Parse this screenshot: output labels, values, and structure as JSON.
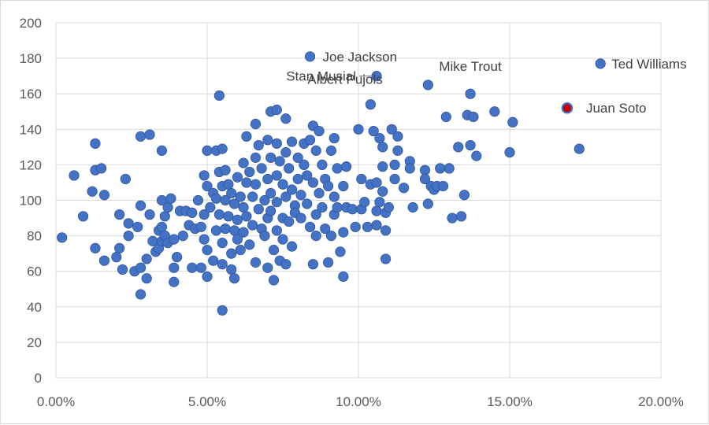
{
  "colors": {
    "point": "#4472c4",
    "point_stroke": "#2f5597",
    "highlight": "#c00000",
    "grid": "#d9d9d9",
    "text": "#595959"
  },
  "chart_data": {
    "type": "scatter",
    "title": "",
    "xlabel": "",
    "ylabel": "",
    "xlim": [
      0,
      0.2
    ],
    "ylim": [
      0,
      200
    ],
    "grid": true,
    "x_ticks": [
      0,
      0.05,
      0.1,
      0.15,
      0.2
    ],
    "x_tick_labels": [
      "0.00%",
      "5.00%",
      "10.00%",
      "15.00%",
      "20.00%"
    ],
    "y_ticks": [
      0,
      20,
      40,
      60,
      80,
      100,
      120,
      140,
      160,
      180,
      200
    ],
    "y_tick_labels": [
      "0",
      "20",
      "40",
      "60",
      "80",
      "100",
      "120",
      "140",
      "160",
      "180",
      "200"
    ],
    "labeled_points": [
      {
        "name": "Joe Jackson",
        "x": 0.084,
        "y": 181
      },
      {
        "name": "Stan Musial",
        "x": 0.106,
        "y": 170
      },
      {
        "name": "Mike Trout",
        "x": 0.123,
        "y": 165
      },
      {
        "name": "Albert Pujols",
        "x": 0.104,
        "y": 154
      },
      {
        "name": "Ted Williams",
        "x": 0.18,
        "y": 177
      },
      {
        "name": "Juan Soto",
        "x": 0.169,
        "y": 152,
        "highlight": true
      }
    ],
    "points": [
      [
        0.002,
        79
      ],
      [
        0.006,
        114
      ],
      [
        0.009,
        91
      ],
      [
        0.012,
        105
      ],
      [
        0.013,
        132
      ],
      [
        0.013,
        117
      ],
      [
        0.013,
        73
      ],
      [
        0.015,
        118
      ],
      [
        0.016,
        103
      ],
      [
        0.016,
        66
      ],
      [
        0.02,
        68
      ],
      [
        0.021,
        92
      ],
      [
        0.021,
        73
      ],
      [
        0.022,
        61
      ],
      [
        0.023,
        112
      ],
      [
        0.024,
        87
      ],
      [
        0.024,
        80
      ],
      [
        0.026,
        60
      ],
      [
        0.027,
        85
      ],
      [
        0.028,
        62
      ],
      [
        0.028,
        47
      ],
      [
        0.028,
        136
      ],
      [
        0.028,
        97
      ],
      [
        0.03,
        67
      ],
      [
        0.03,
        56
      ],
      [
        0.031,
        137
      ],
      [
        0.031,
        92
      ],
      [
        0.032,
        77
      ],
      [
        0.033,
        71
      ],
      [
        0.034,
        73
      ],
      [
        0.034,
        83
      ],
      [
        0.035,
        128
      ],
      [
        0.035,
        100
      ],
      [
        0.035,
        85
      ],
      [
        0.035,
        77
      ],
      [
        0.036,
        91
      ],
      [
        0.036,
        80
      ],
      [
        0.037,
        96
      ],
      [
        0.037,
        76
      ],
      [
        0.038,
        101
      ],
      [
        0.039,
        62
      ],
      [
        0.039,
        54
      ],
      [
        0.039,
        78
      ],
      [
        0.04,
        68
      ],
      [
        0.041,
        94
      ],
      [
        0.042,
        80
      ],
      [
        0.043,
        94
      ],
      [
        0.044,
        86
      ],
      [
        0.045,
        62
      ],
      [
        0.045,
        93
      ],
      [
        0.046,
        84
      ],
      [
        0.047,
        100
      ],
      [
        0.048,
        85
      ],
      [
        0.048,
        62
      ],
      [
        0.049,
        114
      ],
      [
        0.049,
        92
      ],
      [
        0.049,
        78
      ],
      [
        0.05,
        72
      ],
      [
        0.05,
        57
      ],
      [
        0.05,
        108
      ],
      [
        0.05,
        128
      ],
      [
        0.051,
        96
      ],
      [
        0.052,
        104
      ],
      [
        0.052,
        66
      ],
      [
        0.053,
        128
      ],
      [
        0.053,
        101
      ],
      [
        0.053,
        83
      ],
      [
        0.054,
        159
      ],
      [
        0.054,
        116
      ],
      [
        0.054,
        92
      ],
      [
        0.055,
        129
      ],
      [
        0.055,
        108
      ],
      [
        0.055,
        76
      ],
      [
        0.055,
        64
      ],
      [
        0.055,
        38
      ],
      [
        0.056,
        117
      ],
      [
        0.056,
        100
      ],
      [
        0.056,
        84
      ],
      [
        0.057,
        109
      ],
      [
        0.057,
        91
      ],
      [
        0.058,
        104
      ],
      [
        0.058,
        70
      ],
      [
        0.058,
        61
      ],
      [
        0.059,
        98
      ],
      [
        0.059,
        83
      ],
      [
        0.059,
        56
      ],
      [
        0.06,
        113
      ],
      [
        0.06,
        89
      ],
      [
        0.06,
        78
      ],
      [
        0.061,
        102
      ],
      [
        0.061,
        72
      ],
      [
        0.062,
        121
      ],
      [
        0.062,
        96
      ],
      [
        0.062,
        82
      ],
      [
        0.063,
        136
      ],
      [
        0.063,
        110
      ],
      [
        0.063,
        91
      ],
      [
        0.064,
        116
      ],
      [
        0.064,
        75
      ],
      [
        0.065,
        102
      ],
      [
        0.065,
        86
      ],
      [
        0.066,
        143
      ],
      [
        0.066,
        124
      ],
      [
        0.066,
        109
      ],
      [
        0.066,
        65
      ],
      [
        0.067,
        131
      ],
      [
        0.067,
        95
      ],
      [
        0.068,
        118
      ],
      [
        0.068,
        84
      ],
      [
        0.069,
        100
      ],
      [
        0.069,
        80
      ],
      [
        0.07,
        134
      ],
      [
        0.07,
        112
      ],
      [
        0.07,
        90
      ],
      [
        0.07,
        62
      ],
      [
        0.071,
        150
      ],
      [
        0.071,
        124
      ],
      [
        0.071,
        104
      ],
      [
        0.071,
        94
      ],
      [
        0.072,
        72
      ],
      [
        0.072,
        55
      ],
      [
        0.073,
        151
      ],
      [
        0.073,
        132
      ],
      [
        0.073,
        114
      ],
      [
        0.073,
        99
      ],
      [
        0.073,
        83
      ],
      [
        0.074,
        122
      ],
      [
        0.074,
        66
      ],
      [
        0.075,
        109
      ],
      [
        0.075,
        90
      ],
      [
        0.075,
        78
      ],
      [
        0.076,
        146
      ],
      [
        0.076,
        127
      ],
      [
        0.076,
        102
      ],
      [
        0.076,
        64
      ],
      [
        0.077,
        118
      ],
      [
        0.077,
        88
      ],
      [
        0.078,
        133
      ],
      [
        0.078,
        106
      ],
      [
        0.078,
        74
      ],
      [
        0.079,
        97
      ],
      [
        0.079,
        93
      ],
      [
        0.08,
        124
      ],
      [
        0.08,
        112
      ],
      [
        0.081,
        103
      ],
      [
        0.081,
        90
      ],
      [
        0.082,
        132
      ],
      [
        0.082,
        120
      ],
      [
        0.083,
        114
      ],
      [
        0.083,
        98
      ],
      [
        0.084,
        134
      ],
      [
        0.084,
        85
      ],
      [
        0.085,
        142
      ],
      [
        0.085,
        110
      ],
      [
        0.085,
        64
      ],
      [
        0.086,
        128
      ],
      [
        0.086,
        92
      ],
      [
        0.086,
        80
      ],
      [
        0.087,
        139
      ],
      [
        0.087,
        104
      ],
      [
        0.088,
        120
      ],
      [
        0.088,
        96
      ],
      [
        0.089,
        84
      ],
      [
        0.089,
        112
      ],
      [
        0.09,
        108
      ],
      [
        0.09,
        65
      ],
      [
        0.091,
        128
      ],
      [
        0.091,
        80
      ],
      [
        0.092,
        135
      ],
      [
        0.092,
        102
      ],
      [
        0.092,
        92
      ],
      [
        0.093,
        118
      ],
      [
        0.093,
        96
      ],
      [
        0.094,
        71
      ],
      [
        0.095,
        108
      ],
      [
        0.095,
        57
      ],
      [
        0.095,
        82
      ],
      [
        0.096,
        119
      ],
      [
        0.096,
        96
      ],
      [
        0.098,
        95
      ],
      [
        0.099,
        85
      ],
      [
        0.1,
        140
      ],
      [
        0.101,
        95
      ],
      [
        0.101,
        112
      ],
      [
        0.102,
        99
      ],
      [
        0.103,
        85
      ],
      [
        0.104,
        109
      ],
      [
        0.105,
        139
      ],
      [
        0.106,
        110
      ],
      [
        0.106,
        86
      ],
      [
        0.106,
        94
      ],
      [
        0.107,
        99
      ],
      [
        0.107,
        135
      ],
      [
        0.108,
        130
      ],
      [
        0.108,
        119
      ],
      [
        0.108,
        105
      ],
      [
        0.109,
        83
      ],
      [
        0.109,
        67
      ],
      [
        0.109,
        93
      ],
      [
        0.11,
        96
      ],
      [
        0.111,
        140
      ],
      [
        0.112,
        120
      ],
      [
        0.112,
        112
      ],
      [
        0.113,
        128
      ],
      [
        0.113,
        136
      ],
      [
        0.115,
        107
      ],
      [
        0.117,
        122
      ],
      [
        0.117,
        118
      ],
      [
        0.118,
        96
      ],
      [
        0.122,
        117
      ],
      [
        0.122,
        112
      ],
      [
        0.123,
        98
      ],
      [
        0.124,
        108
      ],
      [
        0.125,
        106
      ],
      [
        0.126,
        108
      ],
      [
        0.127,
        118
      ],
      [
        0.128,
        108
      ],
      [
        0.129,
        147
      ],
      [
        0.13,
        118
      ],
      [
        0.131,
        90
      ],
      [
        0.133,
        130
      ],
      [
        0.134,
        91
      ],
      [
        0.135,
        103
      ],
      [
        0.136,
        148
      ],
      [
        0.137,
        160
      ],
      [
        0.137,
        131
      ],
      [
        0.138,
        147
      ],
      [
        0.139,
        125
      ],
      [
        0.145,
        150
      ],
      [
        0.15,
        127
      ],
      [
        0.151,
        144
      ],
      [
        0.173,
        129
      ]
    ]
  }
}
